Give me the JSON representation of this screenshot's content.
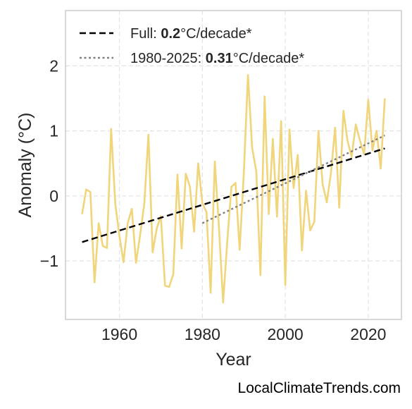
{
  "chart_data": {
    "type": "line",
    "xlabel": "Year",
    "ylabel": "Anomaly (°C)",
    "xlim": [
      1947,
      2028
    ],
    "ylim": [
      -1.9,
      2.85
    ],
    "x_ticks": [
      1960,
      1980,
      2000,
      2020
    ],
    "x_tick_labels": [
      "1960",
      "1980",
      "2000",
      "2020"
    ],
    "y_ticks": [
      -1,
      0,
      1,
      2
    ],
    "y_tick_labels": [
      "−1",
      "0",
      "1",
      "2"
    ],
    "grid": true,
    "legend_position": "top-left",
    "series": [
      {
        "style": "solid",
        "color": "#f0d57a",
        "x": [
          1951,
          1952,
          1953,
          1954,
          1955,
          1956,
          1957,
          1958,
          1959,
          1960,
          1961,
          1962,
          1963,
          1964,
          1965,
          1966,
          1967,
          1968,
          1969,
          1970,
          1971,
          1972,
          1973,
          1974,
          1975,
          1976,
          1977,
          1978,
          1979,
          1980,
          1981,
          1982,
          1983,
          1984,
          1985,
          1986,
          1987,
          1988,
          1989,
          1990,
          1991,
          1992,
          1993,
          1994,
          1995,
          1996,
          1997,
          1998,
          1999,
          2000,
          2001,
          2002,
          2003,
          2004,
          2005,
          2006,
          2007,
          2008,
          2009,
          2010,
          2011,
          2012,
          2013,
          2014,
          2015,
          2016,
          2017,
          2018,
          2019,
          2020,
          2021,
          2022,
          2023,
          2024
        ],
        "values": [
          -0.28,
          0.1,
          0.06,
          -1.33,
          -0.42,
          -0.77,
          -0.8,
          1.03,
          -0.12,
          -0.62,
          -1.02,
          -0.42,
          -0.2,
          -1.03,
          -0.6,
          -0.12,
          0.94,
          -0.87,
          -0.5,
          -0.31,
          -1.38,
          -1.4,
          -1.2,
          0.33,
          -0.81,
          0.34,
          0.14,
          -0.55,
          0.5,
          -0.11,
          -0.25,
          -1.49,
          0.53,
          -0.48,
          -1.64,
          -0.7,
          0.14,
          0.2,
          -0.83,
          0.35,
          1.86,
          0.74,
          0.38,
          -1.22,
          1.53,
          -0.28,
          0.88,
          -0.32,
          1.15,
          -1.37,
          1.02,
          0.12,
          0.63,
          -0.84,
          0.08,
          -0.53,
          -0.4,
          1.0,
          0.18,
          -0.1,
          0.35,
          1.05,
          -0.18,
          1.31,
          0.85,
          0.6,
          1.1,
          0.85,
          0.64,
          1.48,
          0.7,
          1.0,
          0.42,
          1.5
        ]
      },
      {
        "style": "dashed",
        "color": "#000000",
        "x": [
          1951,
          2024
        ],
        "values": [
          -0.71,
          0.73
        ]
      },
      {
        "style": "dotted",
        "color": "#808080",
        "x": [
          1980,
          2024
        ],
        "values": [
          -0.42,
          0.93
        ]
      }
    ],
    "legend": [
      {
        "style": "dashed",
        "prefix": "Full: ",
        "value": "0.2",
        "suffix": "°C/decade*"
      },
      {
        "style": "dotted",
        "prefix": "1980-2025: ",
        "value": "0.31",
        "suffix": "°C/decade*"
      }
    ]
  },
  "footer_text": "LocalClimateTrends.com"
}
